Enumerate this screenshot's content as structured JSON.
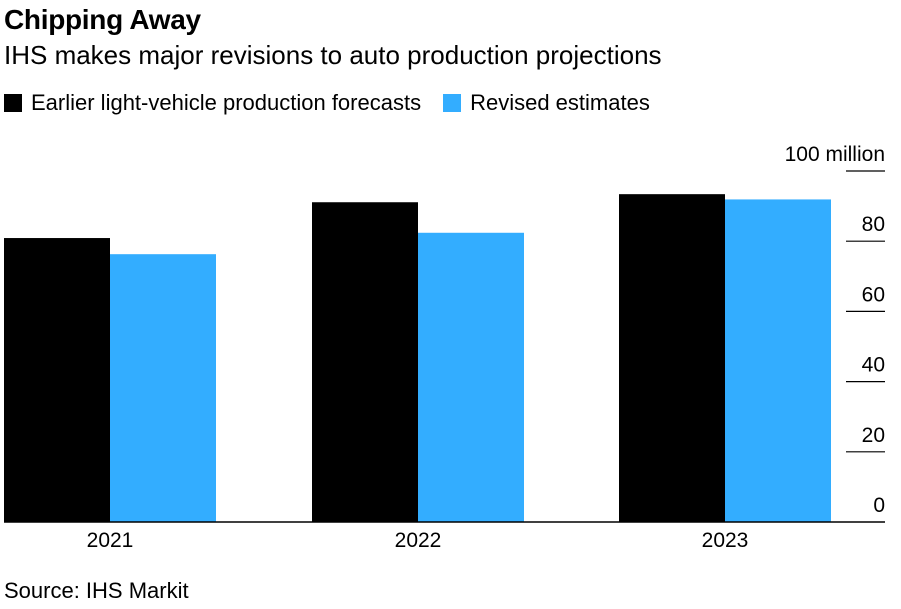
{
  "header": {
    "title": "Chipping Away",
    "subtitle": "IHS makes major revisions to auto production projections"
  },
  "legend": [
    {
      "label": "Earlier light-vehicle production forecasts",
      "color": "#000000"
    },
    {
      "label": "Revised estimates",
      "color": "#33adff"
    }
  ],
  "footer": {
    "source": "Source: IHS Markit"
  },
  "chart_data": {
    "type": "bar",
    "categories": [
      "2021",
      "2022",
      "2023"
    ],
    "series": [
      {
        "name": "Earlier light-vehicle production forecasts",
        "values": [
          80.9,
          91.1,
          93.4
        ],
        "color": "#000000"
      },
      {
        "name": "Revised estimates",
        "values": [
          76.3,
          82.4,
          91.9
        ],
        "color": "#33adff"
      }
    ],
    "ylim": [
      0,
      100
    ],
    "yticks": [
      "0",
      "20",
      "40",
      "60",
      "80",
      "100 million"
    ],
    "ytick_values": [
      0,
      20,
      40,
      60,
      80,
      100
    ],
    "legend_position": "top-left",
    "grid": false
  }
}
